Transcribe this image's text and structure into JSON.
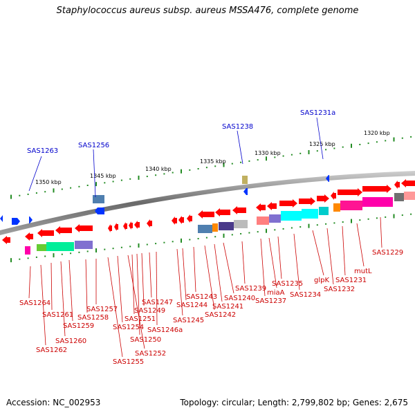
{
  "title": "Staphylococcus aureus subsp. aureus MSSA476, complete genome",
  "footer": {
    "accession": "Accession: NC_002953",
    "summary": "Topology: circular; Length: 2,799,802 bp; Genes: 2,675"
  },
  "colors": {
    "gene": "#ff0000",
    "gene_label": "#cc0000",
    "rna_label": "#0000cc",
    "rna": "#0033ff",
    "backbone": "#808080",
    "tick": "#228b22"
  },
  "scale_labels": [
    "1350 kbp",
    "1345 kbp",
    "1340 kbp",
    "1335 kbp",
    "1330 kbp",
    "1325 kbp",
    "1320 kbp"
  ],
  "rna_labels": [
    "SAS1263",
    "SAS1256",
    "SAS1238",
    "SAS1231a"
  ],
  "gene_labels": [
    "SAS1264",
    "SAS1262",
    "SAS1261",
    "SAS1260",
    "SAS1259",
    "SAS1258",
    "SAS1257",
    "SAS1255",
    "SAS1254",
    "SAS1252",
    "SAS1251",
    "SAS1250",
    "SAS1249",
    "SAS1247",
    "SAS1246a",
    "SAS1245",
    "SAS1244",
    "SAS1243",
    "SAS1242",
    "SAS1241",
    "SAS1240",
    "SAS1239",
    "SAS1237",
    "miaA",
    "SAS1235",
    "SAS1234",
    "glpK",
    "SAS1232",
    "SAS1231",
    "mutL",
    "SAS1229"
  ]
}
